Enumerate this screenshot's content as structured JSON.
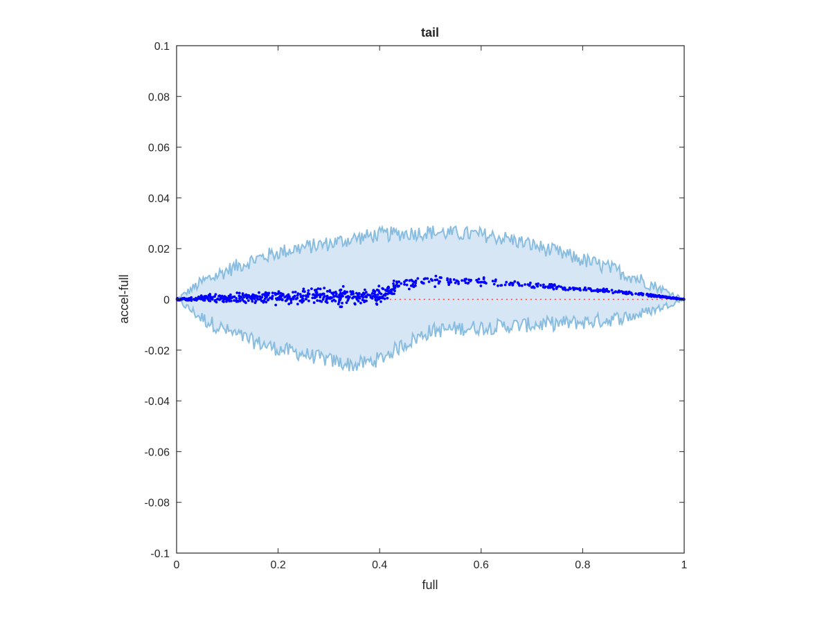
{
  "chart_data": {
    "type": "scatter",
    "title": "tail",
    "xlabel": "full",
    "ylabel": "accel-full",
    "xlim": [
      0,
      1
    ],
    "ylim": [
      -0.1,
      0.1
    ],
    "xticks": [
      0,
      0.2,
      0.4,
      0.6,
      0.8,
      1
    ],
    "xtick_labels": [
      "0",
      "0.2",
      "0.4",
      "0.6",
      "0.8",
      "1"
    ],
    "yticks": [
      -0.1,
      -0.08,
      -0.06,
      -0.04,
      -0.02,
      0,
      0.02,
      0.04,
      0.06,
      0.08,
      0.1
    ],
    "ytick_labels": [
      "-0.1",
      "-0.08",
      "-0.06",
      "-0.04",
      "-0.02",
      "0",
      "0.02",
      "0.04",
      "0.06",
      "0.08",
      "0.1"
    ],
    "grid": false,
    "colors": {
      "points": "#0000ff",
      "band_fill": "#d6e6f4",
      "band_edge": "#88bde0",
      "reference_line": "#ff3b3b",
      "axes": "#262626"
    },
    "band": {
      "x": [
        0,
        0.05,
        0.1,
        0.15,
        0.2,
        0.25,
        0.3,
        0.35,
        0.4,
        0.45,
        0.5,
        0.55,
        0.6,
        0.65,
        0.7,
        0.75,
        0.8,
        0.85,
        0.9,
        0.95,
        1.0
      ],
      "upper": [
        0,
        0.0068,
        0.0115,
        0.0155,
        0.0185,
        0.0205,
        0.022,
        0.024,
        0.0255,
        0.026,
        0.0265,
        0.026,
        0.0255,
        0.024,
        0.0215,
        0.0185,
        0.0155,
        0.0125,
        0.009,
        0.0045,
        0
      ],
      "lower": [
        0,
        -0.0075,
        -0.0125,
        -0.0165,
        -0.0195,
        -0.0215,
        -0.024,
        -0.026,
        -0.0235,
        -0.0175,
        -0.0125,
        -0.0115,
        -0.011,
        -0.0105,
        -0.01,
        -0.0095,
        -0.009,
        -0.008,
        -0.0065,
        -0.0035,
        0
      ]
    },
    "reference_line": {
      "y": 0,
      "style": "dotted",
      "from_x": 0.42,
      "to_x": 1.0
    },
    "series": [
      {
        "trend_x": [
          0,
          0.1,
          0.2,
          0.3,
          0.4,
          0.44,
          0.5,
          0.6,
          0.7,
          0.8,
          0.9,
          0.95,
          1.0
        ],
        "trend_y": [
          0,
          0.0005,
          0.001,
          0.0012,
          0.0015,
          0.0055,
          0.0075,
          0.007,
          0.0055,
          0.004,
          0.0025,
          0.0012,
          0
        ],
        "spread_x": [
          0,
          0.1,
          0.2,
          0.3,
          0.4,
          0.44,
          0.6,
          0.8,
          1.0
        ],
        "spread": [
          0.0003,
          0.0012,
          0.0018,
          0.0024,
          0.0022,
          0.0015,
          0.0009,
          0.0006,
          0.0001
        ],
        "point_count": 900
      }
    ]
  }
}
